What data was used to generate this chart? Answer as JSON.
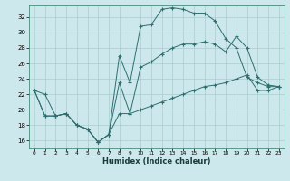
{
  "xlabel": "Humidex (Indice chaleur)",
  "bg_color": "#cce8ec",
  "grid_color": "#aacccc",
  "line_color": "#2d6e6e",
  "xlim": [
    -0.5,
    23.5
  ],
  "ylim": [
    15.0,
    33.5
  ],
  "yticks": [
    16,
    18,
    20,
    22,
    24,
    26,
    28,
    30,
    32
  ],
  "xticks": [
    0,
    1,
    2,
    3,
    4,
    5,
    6,
    7,
    8,
    9,
    10,
    11,
    12,
    13,
    14,
    15,
    16,
    17,
    18,
    19,
    20,
    21,
    22,
    23
  ],
  "series": {
    "max": {
      "x": [
        0,
        1,
        2,
        3,
        4,
        5,
        6,
        7,
        8,
        9,
        10,
        11,
        12,
        13,
        14,
        15,
        16,
        17,
        18,
        19,
        20,
        21,
        22,
        23
      ],
      "y": [
        22.5,
        22.0,
        19.2,
        19.5,
        18.0,
        17.5,
        15.8,
        16.8,
        27.0,
        23.5,
        30.8,
        31.0,
        33.0,
        33.2,
        33.0,
        32.5,
        32.5,
        31.5,
        29.2,
        28.0,
        24.2,
        23.5,
        23.0,
        23.0
      ]
    },
    "min": {
      "x": [
        0,
        1,
        2,
        3,
        4,
        5,
        6,
        7,
        8,
        9,
        10,
        11,
        12,
        13,
        14,
        15,
        16,
        17,
        18,
        19,
        20,
        21,
        22,
        23
      ],
      "y": [
        22.5,
        19.2,
        19.2,
        19.5,
        18.0,
        17.5,
        15.8,
        16.8,
        19.5,
        19.5,
        20.0,
        20.5,
        21.0,
        21.5,
        22.0,
        22.5,
        23.0,
        23.2,
        23.5,
        24.0,
        24.5,
        22.5,
        22.5,
        23.0
      ]
    },
    "avg": {
      "x": [
        0,
        1,
        2,
        3,
        4,
        5,
        6,
        7,
        8,
        9,
        10,
        11,
        12,
        13,
        14,
        15,
        16,
        17,
        18,
        19,
        20,
        21,
        22,
        23
      ],
      "y": [
        22.5,
        19.2,
        19.2,
        19.5,
        18.0,
        17.5,
        15.8,
        16.8,
        23.5,
        19.5,
        25.5,
        26.2,
        27.2,
        28.0,
        28.5,
        28.5,
        28.8,
        28.5,
        27.5,
        29.5,
        28.0,
        24.2,
        23.2,
        23.0
      ]
    }
  }
}
